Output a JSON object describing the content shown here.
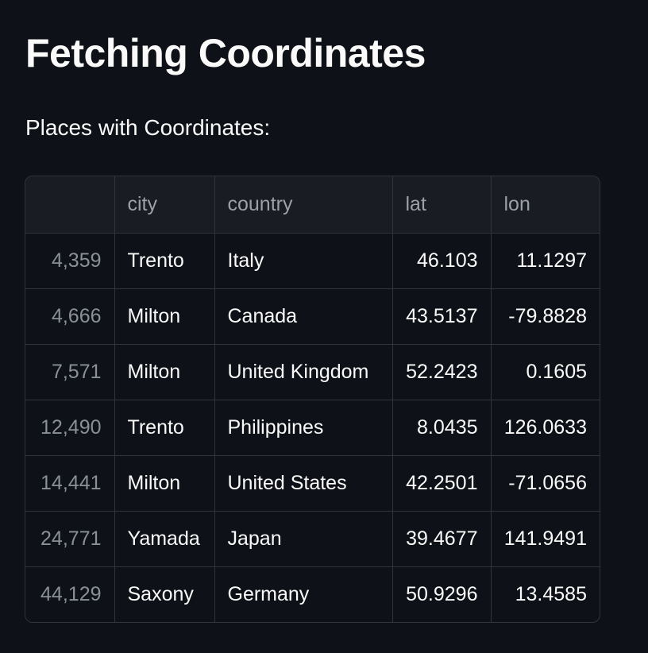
{
  "page": {
    "title": "Fetching Coordinates",
    "subtitle": "Places with Coordinates:"
  },
  "table": {
    "columns": [
      "",
      "city",
      "country",
      "lat",
      "lon"
    ],
    "rows": [
      {
        "index": "4,359",
        "city": "Trento",
        "country": "Italy",
        "lat": "46.103",
        "lon": "11.1297"
      },
      {
        "index": "4,666",
        "city": "Milton",
        "country": "Canada",
        "lat": "43.5137",
        "lon": "-79.8828"
      },
      {
        "index": "7,571",
        "city": "Milton",
        "country": "United Kingdom",
        "lat": "52.2423",
        "lon": "0.1605"
      },
      {
        "index": "12,490",
        "city": "Trento",
        "country": "Philippines",
        "lat": "8.0435",
        "lon": "126.0633"
      },
      {
        "index": "14,441",
        "city": "Milton",
        "country": "United States",
        "lat": "42.2501",
        "lon": "-71.0656"
      },
      {
        "index": "24,771",
        "city": "Yamada",
        "country": "Japan",
        "lat": "39.4677",
        "lon": "141.9491"
      },
      {
        "index": "44,129",
        "city": "Saxony",
        "country": "Germany",
        "lat": "50.9296",
        "lon": "13.4585"
      }
    ]
  },
  "colors": {
    "background": "#0e1117",
    "header_background": "#1a1c24",
    "border": "#31333f",
    "text": "#fafafa",
    "muted_text": "#8b8f98"
  }
}
